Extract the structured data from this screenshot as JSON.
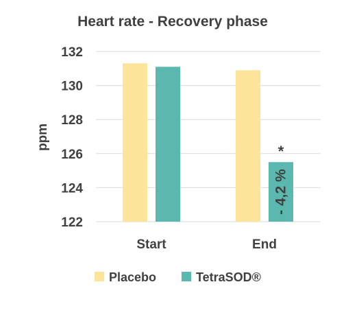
{
  "chart_data": {
    "type": "bar",
    "title": "Heart rate - Recovery phase",
    "xlabel": "",
    "ylabel": "ppm",
    "ylim": [
      122,
      132
    ],
    "yticks": [
      122,
      124,
      126,
      128,
      130,
      132
    ],
    "grid": true,
    "legend_position": "bottom",
    "categories": [
      "Start",
      "End"
    ],
    "series": [
      {
        "name": "Placebo",
        "color": "#FCE49A",
        "values": [
          131.3,
          130.9
        ]
      },
      {
        "name": "TetraSOD®",
        "color": "#5BB8AE",
        "values": [
          131.1,
          125.5
        ]
      }
    ],
    "annotations": [
      {
        "series": "TetraSOD®",
        "category": "End",
        "marker": "*",
        "bar_label": "- 4,2 %"
      }
    ]
  }
}
